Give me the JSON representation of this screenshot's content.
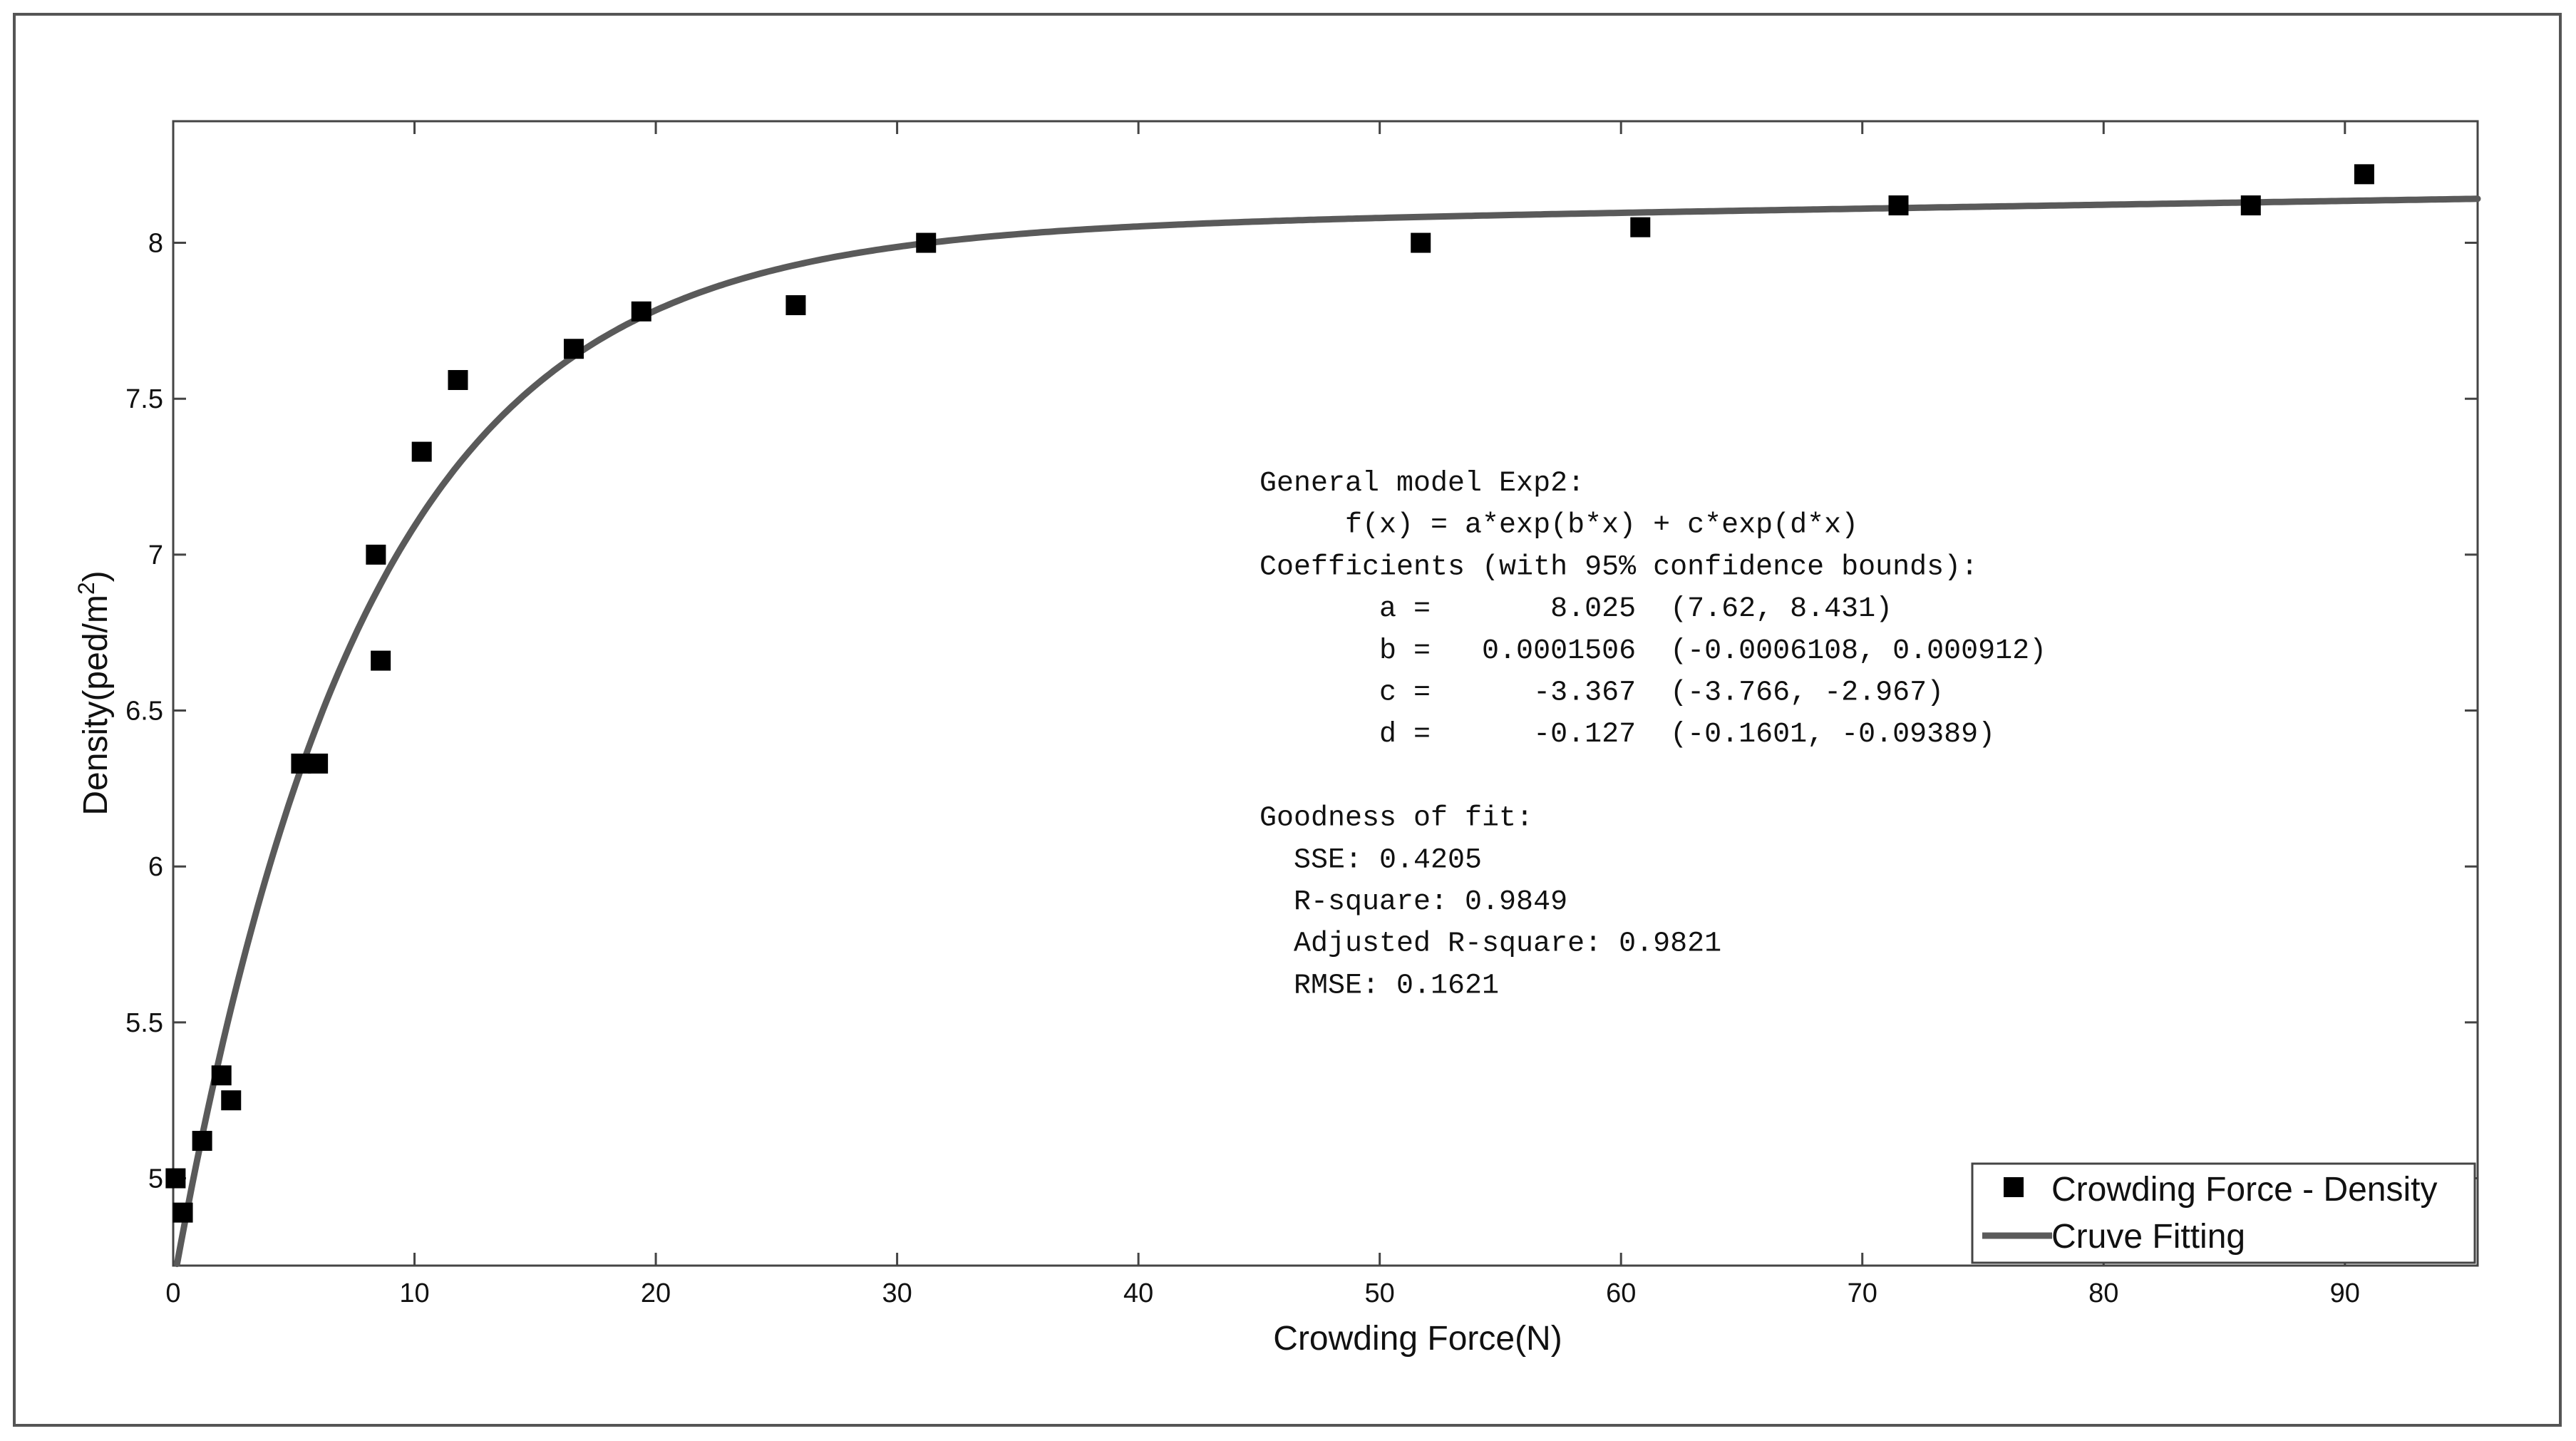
{
  "chart_data": {
    "type": "scatter",
    "xlabel": "Crowding Force(N)",
    "ylabel": "Density(ped/m",
    "ylabel_sup": "2",
    "ylabel_close": ")",
    "xlim": [
      0,
      95.5
    ],
    "ylim": [
      4.72,
      8.39
    ],
    "x_ticks": [
      0,
      10,
      20,
      30,
      40,
      50,
      60,
      70,
      80,
      90
    ],
    "y_ticks": [
      5,
      5.5,
      6,
      6.5,
      7,
      7.5,
      8
    ],
    "y_tick_labels": [
      "5",
      "5.5",
      "6",
      "6.5",
      "7",
      "7.5",
      "8"
    ],
    "grid": false,
    "legend_position": "bottom-right",
    "series": [
      {
        "name": "Crowding Force - Density",
        "kind": "scatter",
        "color": "#000000",
        "marker": "square",
        "points": [
          {
            "x": 0.1,
            "y": 5.0
          },
          {
            "x": 0.4,
            "y": 4.89
          },
          {
            "x": 1.2,
            "y": 5.12
          },
          {
            "x": 2.0,
            "y": 5.33
          },
          {
            "x": 2.4,
            "y": 5.25
          },
          {
            "x": 5.3,
            "y": 6.33
          },
          {
            "x": 6.0,
            "y": 6.33
          },
          {
            "x": 8.4,
            "y": 7.0
          },
          {
            "x": 8.6,
            "y": 6.66
          },
          {
            "x": 10.3,
            "y": 7.33
          },
          {
            "x": 11.8,
            "y": 7.56
          },
          {
            "x": 16.6,
            "y": 7.66
          },
          {
            "x": 19.4,
            "y": 7.78
          },
          {
            "x": 25.8,
            "y": 7.8
          },
          {
            "x": 31.2,
            "y": 8.0
          },
          {
            "x": 51.7,
            "y": 8.0
          },
          {
            "x": 60.8,
            "y": 8.05
          },
          {
            "x": 71.5,
            "y": 8.12
          },
          {
            "x": 86.1,
            "y": 8.12
          },
          {
            "x": 90.8,
            "y": 8.22
          }
        ]
      },
      {
        "name": "Cruve Fitting",
        "kind": "fit",
        "color": "#5a5a5a",
        "model": {
          "a": 8.025,
          "b": 0.0001506,
          "c": -3.367,
          "d": -0.127
        }
      }
    ],
    "annotation": [
      "General model Exp2:",
      "     f(x) = a*exp(b*x) + c*exp(d*x)",
      "Coefficients (with 95% confidence bounds):",
      "       a =       8.025  (7.62, 8.431)",
      "       b =   0.0001506  (-0.0006108, 0.000912)",
      "       c =      -3.367  (-3.766, -2.967)",
      "       d =      -0.127  (-0.1601, -0.09389)",
      "",
      "Goodness of fit:",
      "  SSE: 0.4205",
      "  R-square: 0.9849",
      "  Adjusted R-square: 0.9821",
      "  RMSE: 0.1621"
    ]
  }
}
